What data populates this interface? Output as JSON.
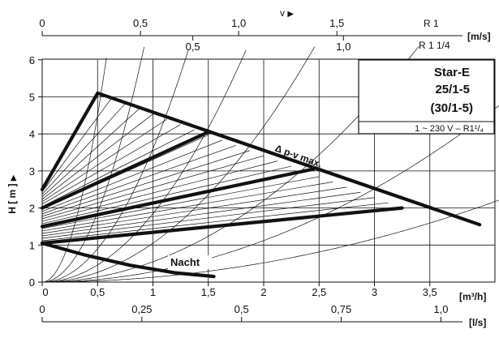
{
  "chart_data": {
    "type": "line",
    "ylabel": "H [ m ]",
    "y_arrow": "▶",
    "xlabel_unit": "[m³/h]",
    "xlim": [
      0,
      4.2
    ],
    "ylim": [
      0,
      6
    ],
    "x_ticks": [
      "0",
      "0,5",
      "1",
      "1,5",
      "2",
      "2,5",
      "3",
      "3,5"
    ],
    "x_tick_values": [
      0,
      0.5,
      1,
      1.5,
      2,
      2.5,
      3,
      3.5
    ],
    "y_ticks": [
      "0",
      "1",
      "2",
      "3",
      "4",
      "5",
      "6"
    ],
    "y_tick_values": [
      0,
      1,
      2,
      3,
      4,
      5,
      6
    ],
    "grid": true,
    "top_axis": {
      "label": "v",
      "arrow": "▶",
      "unit": "[m/s]",
      "r1_label": "R 1",
      "r1_ticks": [
        "0",
        "0,5",
        "1,0",
        "1,5"
      ],
      "r1_tick_flow": [
        0,
        0.887,
        1.774,
        2.661
      ],
      "r114_label": "R 1 1/4",
      "r114_ticks": [
        "0,5",
        "1,0"
      ],
      "r114_tick_flow": [
        1.36,
        2.72
      ]
    },
    "bottom_axis": {
      "unit": "[l/s]",
      "ticks": [
        "0",
        "0,25",
        "0,5",
        "0,75",
        "1,0"
      ],
      "tick_flow": [
        0,
        0.9,
        1.8,
        2.7,
        3.6
      ]
    },
    "series": [
      {
        "name": "Δ p-v max.",
        "x": [
          0,
          0.5,
          3.95
        ],
        "y": [
          2.5,
          5.1,
          1.55
        ]
      },
      {
        "name": "",
        "x": [
          0,
          1.5
        ],
        "y": [
          2.0,
          4.05
        ]
      },
      {
        "name": "",
        "x": [
          0,
          2.45
        ],
        "y": [
          1.5,
          3.05
        ]
      },
      {
        "name": "",
        "x": [
          0,
          3.25
        ],
        "y": [
          1.05,
          2.0
        ]
      },
      {
        "name": "Nacht",
        "x": [
          0,
          0.4,
          0.8,
          1.2,
          1.55
        ],
        "y": [
          1.05,
          0.72,
          0.45,
          0.25,
          0.15
        ]
      }
    ],
    "annotations": {
      "dpv_label": "Δ p-v max.",
      "night_label": "Nacht"
    }
  },
  "legend": {
    "title": "Star-E",
    "model_1": "25/1-5",
    "model_2": "(30/1-5)",
    "supply": "1 ~ 230 V – R1¹/₄"
  }
}
